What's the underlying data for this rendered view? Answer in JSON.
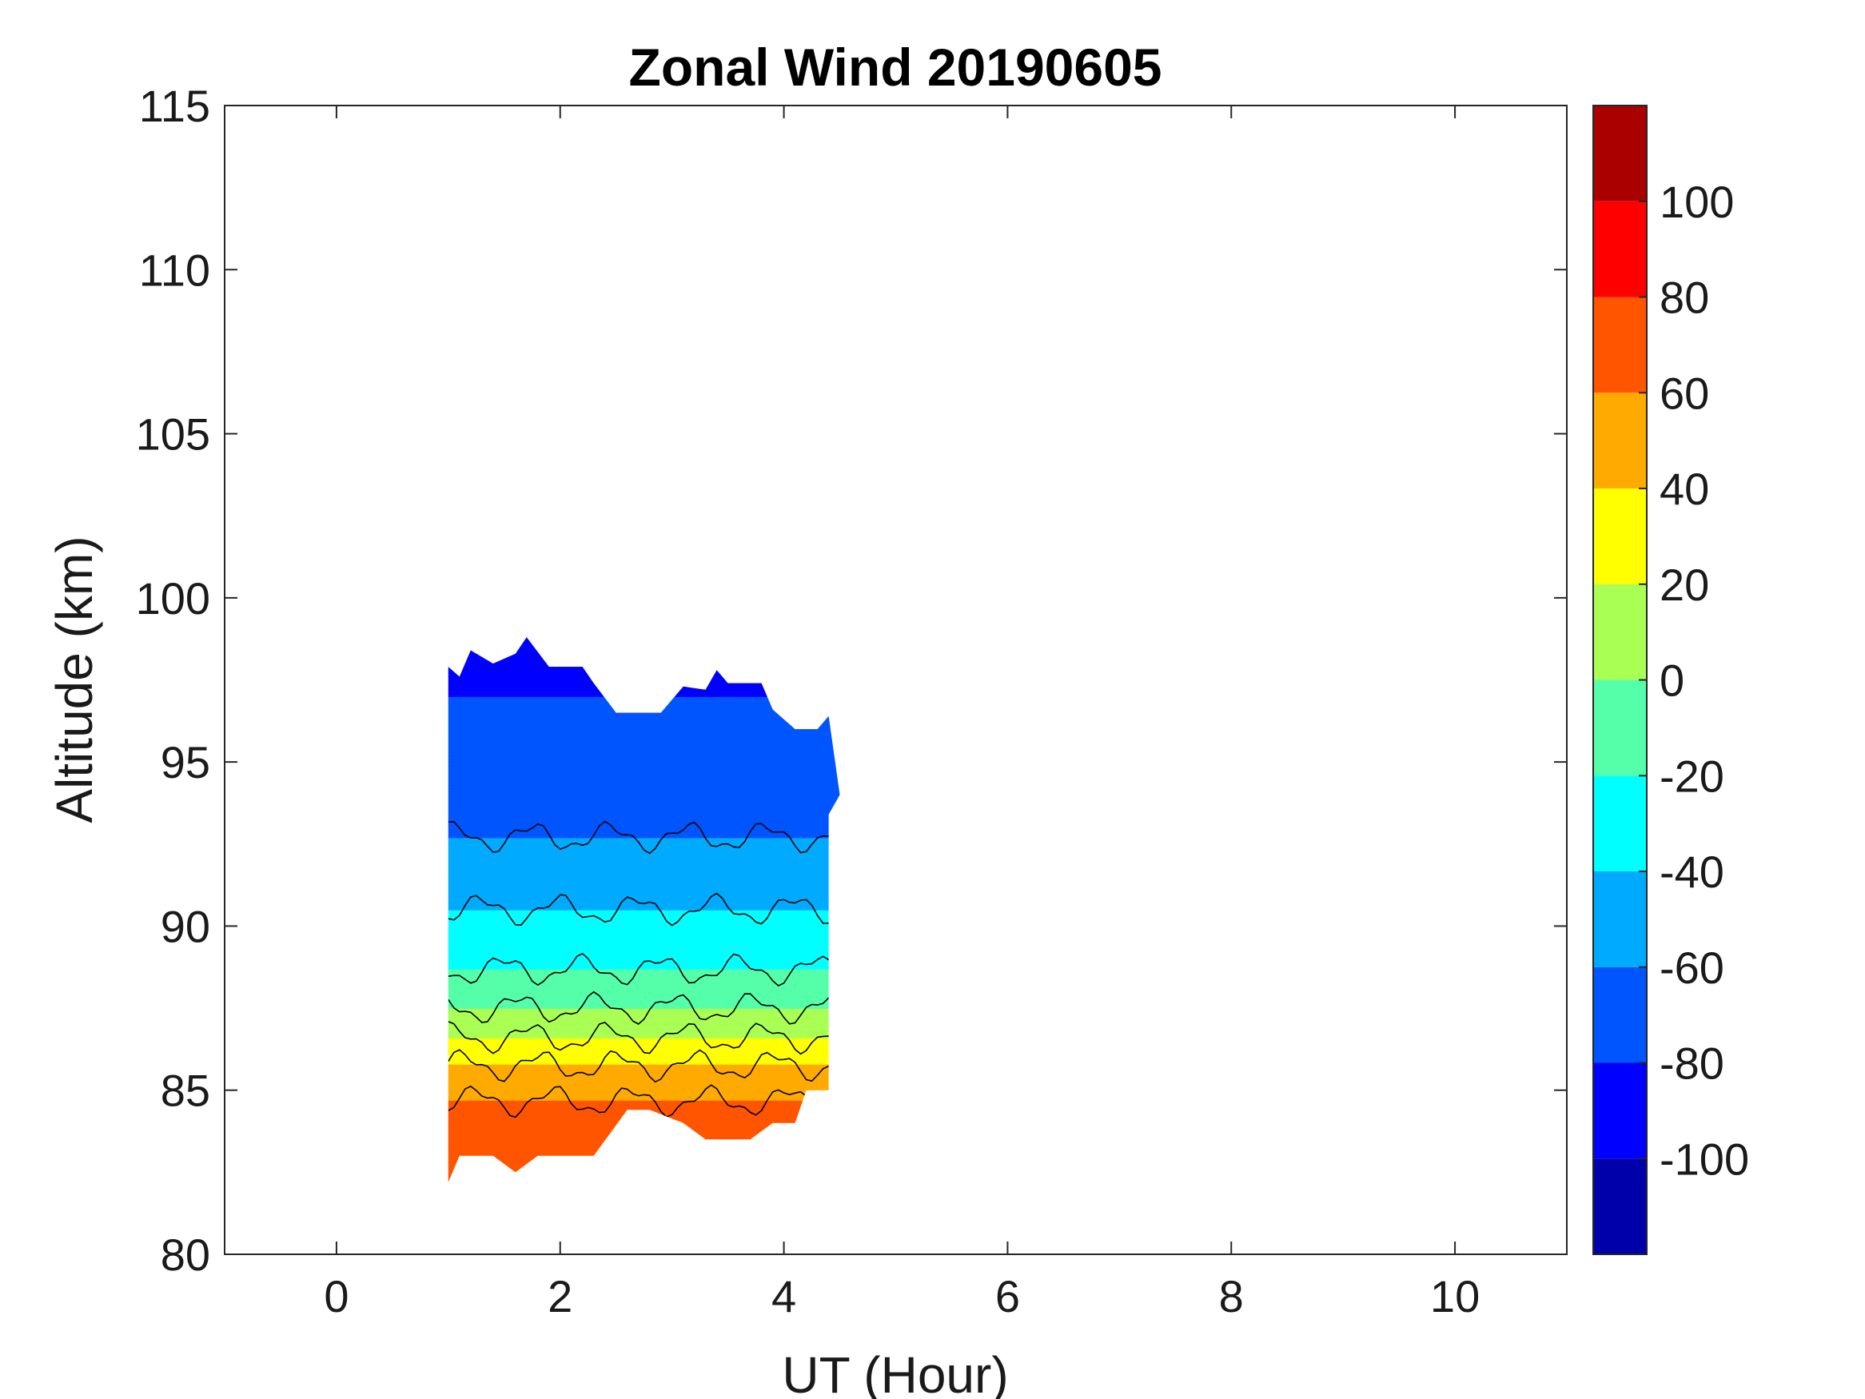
{
  "chart_data": {
    "type": "heatmap",
    "title": "Zonal Wind 20190605",
    "xlabel": "UT (Hour)",
    "ylabel": "Altitude (km)",
    "xlim": [
      -1,
      11
    ],
    "ylim": [
      80,
      115
    ],
    "x_ticks": [
      0,
      2,
      4,
      6,
      8,
      10
    ],
    "y_ticks": [
      80,
      85,
      90,
      95,
      100,
      105,
      110,
      115
    ],
    "colorbar": {
      "range": [
        -120,
        120
      ],
      "ticks": [
        -100,
        -80,
        -60,
        -40,
        -20,
        0,
        20,
        40,
        60,
        80,
        100
      ],
      "levels": [
        -120,
        -100,
        -80,
        -60,
        -40,
        -20,
        0,
        20,
        40,
        60,
        80,
        100,
        120
      ],
      "colors": [
        "#0000aa",
        "#0000ff",
        "#0055ff",
        "#00aaff",
        "#00ffff",
        "#55ffaa",
        "#aaff55",
        "#ffff00",
        "#ffaa00",
        "#ff5500",
        "#ff0000",
        "#aa0000"
      ]
    },
    "data_extent": {
      "x": [
        1.0,
        4.5
      ],
      "y": [
        82.2,
        98.8
      ]
    },
    "altitude_profile": [
      {
        "altitude": 83,
        "wind": 65
      },
      {
        "altitude": 84,
        "wind": 70
      },
      {
        "altitude": 85,
        "wind": 55
      },
      {
        "altitude": 86,
        "wind": 35
      },
      {
        "altitude": 87,
        "wind": 10
      },
      {
        "altitude": 88,
        "wind": -10
      },
      {
        "altitude": 89,
        "wind": -25
      },
      {
        "altitude": 90,
        "wind": -35
      },
      {
        "altitude": 91,
        "wind": -45
      },
      {
        "altitude": 92,
        "wind": -55
      },
      {
        "altitude": 93,
        "wind": -62
      },
      {
        "altitude": 94,
        "wind": -68
      },
      {
        "altitude": 95,
        "wind": -70
      },
      {
        "altitude": 96,
        "wind": -75
      },
      {
        "altitude": 97,
        "wind": -80
      },
      {
        "altitude": 98,
        "wind": -85
      }
    ],
    "grid": false
  }
}
